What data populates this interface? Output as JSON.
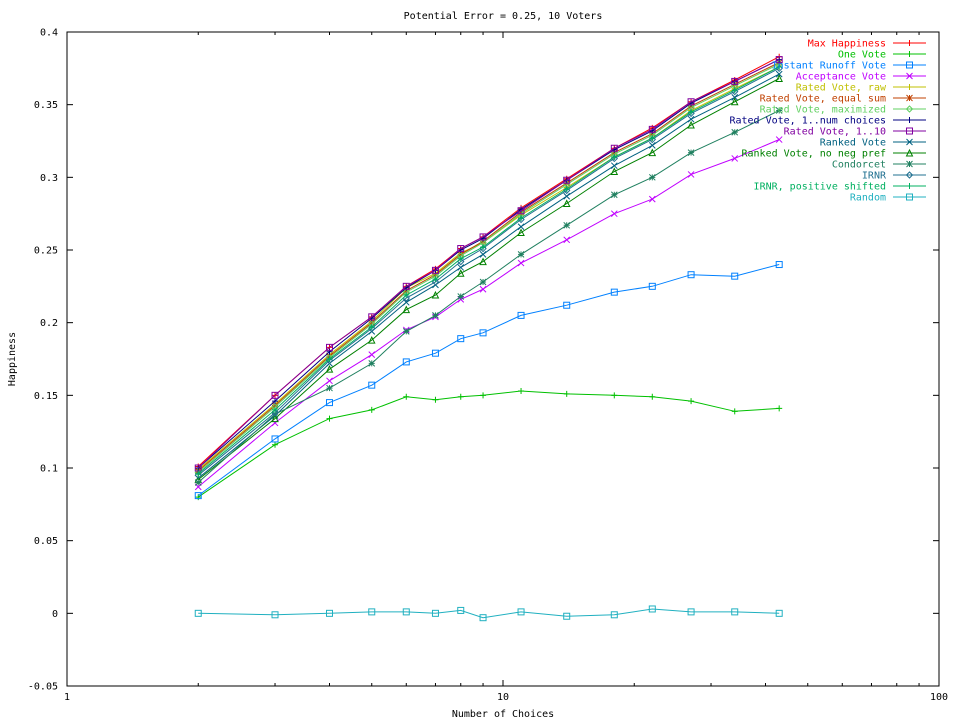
{
  "chart_data": {
    "type": "line",
    "title": "Potential Error = 0.25, 10 Voters",
    "xlabel": "Number of Choices",
    "ylabel": "Happiness",
    "xscale": "log",
    "xlim": [
      1,
      100
    ],
    "ylim": [
      -0.05,
      0.4
    ],
    "xticks": [
      1,
      10,
      100
    ],
    "xtick_labels": [
      "1",
      "10",
      "100"
    ],
    "yticks": [
      -0.05,
      0,
      0.05,
      0.1,
      0.15,
      0.2,
      0.25,
      0.3,
      0.35,
      0.4
    ],
    "ytick_labels": [
      "-0.05",
      "0",
      "0.05",
      "0.1",
      "0.15",
      "0.2",
      "0.25",
      "0.3",
      "0.35",
      "0.4"
    ],
    "grid": false,
    "legend_position": "top-right",
    "x": [
      2,
      3,
      4,
      5,
      6,
      7,
      8,
      9,
      11,
      14,
      18,
      22,
      27,
      34,
      43
    ],
    "series": [
      {
        "name": "Max Happiness",
        "color": "#ff0000",
        "marker": "plus",
        "values": [
          0.101,
          0.15,
          0.183,
          0.204,
          0.225,
          0.237,
          0.251,
          0.259,
          0.279,
          0.299,
          0.32,
          0.334,
          0.352,
          0.367,
          0.383
        ]
      },
      {
        "name": "One Vote",
        "color": "#00c000",
        "marker": "plus",
        "values": [
          0.08,
          0.116,
          0.134,
          0.14,
          0.149,
          0.147,
          0.149,
          0.15,
          0.153,
          0.151,
          0.15,
          0.149,
          0.146,
          0.139,
          0.141
        ]
      },
      {
        "name": "Instant Runoff Vote",
        "color": "#0080ff",
        "marker": "square",
        "values": [
          0.081,
          0.12,
          0.145,
          0.157,
          0.173,
          0.179,
          0.189,
          0.193,
          0.205,
          0.212,
          0.221,
          0.225,
          0.233,
          0.232,
          0.24
        ]
      },
      {
        "name": "Acceptance Vote",
        "color": "#c000ff",
        "marker": "x",
        "values": [
          0.087,
          0.131,
          0.16,
          0.178,
          0.195,
          0.204,
          0.216,
          0.223,
          0.241,
          0.257,
          0.275,
          0.285,
          0.302,
          0.313,
          0.326
        ]
      },
      {
        "name": "Rated Vote, raw",
        "color": "#c0c000",
        "marker": "plus",
        "values": [
          0.099,
          0.144,
          0.178,
          0.201,
          0.224,
          0.234,
          0.248,
          0.255,
          0.274,
          0.293,
          0.314,
          0.327,
          0.346,
          0.361,
          0.376
        ]
      },
      {
        "name": "Rated Vote, equal sum",
        "color": "#c04000",
        "marker": "star",
        "values": [
          0.098,
          0.143,
          0.177,
          0.2,
          0.222,
          0.233,
          0.247,
          0.256,
          0.276,
          0.296,
          0.317,
          0.33,
          0.349,
          0.364,
          0.379
        ]
      },
      {
        "name": "Rated Vote, maximized",
        "color": "#60d060",
        "marker": "diamond",
        "values": [
          0.097,
          0.142,
          0.176,
          0.199,
          0.221,
          0.232,
          0.246,
          0.255,
          0.275,
          0.295,
          0.316,
          0.329,
          0.348,
          0.363,
          0.378
        ]
      },
      {
        "name": "Rated Vote, 1..num choices",
        "color": "#000080",
        "marker": "plus",
        "values": [
          0.1,
          0.146,
          0.18,
          0.203,
          0.224,
          0.236,
          0.25,
          0.258,
          0.278,
          0.298,
          0.319,
          0.332,
          0.351,
          0.366,
          0.381
        ]
      },
      {
        "name": "Rated Vote, 1..10",
        "color": "#8000a0",
        "marker": "square",
        "values": [
          0.1,
          0.15,
          0.183,
          0.204,
          0.225,
          0.236,
          0.251,
          0.259,
          0.277,
          0.298,
          0.32,
          0.333,
          0.352,
          0.366,
          0.381
        ]
      },
      {
        "name": "Ranked Vote",
        "color": "#006080",
        "marker": "x",
        "values": [
          0.093,
          0.136,
          0.172,
          0.194,
          0.214,
          0.226,
          0.238,
          0.247,
          0.266,
          0.287,
          0.308,
          0.322,
          0.34,
          0.355,
          0.371
        ]
      },
      {
        "name": "Ranked Vote, no neg pref",
        "color": "#008000",
        "marker": "triangle",
        "values": [
          0.092,
          0.134,
          0.168,
          0.188,
          0.209,
          0.219,
          0.234,
          0.242,
          0.262,
          0.282,
          0.304,
          0.317,
          0.336,
          0.352,
          0.368
        ]
      },
      {
        "name": "Condorcet",
        "color": "#208060",
        "marker": "star",
        "values": [
          0.09,
          0.137,
          0.155,
          0.172,
          0.194,
          0.205,
          0.218,
          0.228,
          0.247,
          0.267,
          0.288,
          0.3,
          0.317,
          0.331,
          0.346
        ]
      },
      {
        "name": "IRNR",
        "color": "#207090",
        "marker": "diamond",
        "values": [
          0.095,
          0.138,
          0.174,
          0.196,
          0.217,
          0.228,
          0.242,
          0.251,
          0.271,
          0.291,
          0.313,
          0.326,
          0.344,
          0.359,
          0.375
        ]
      },
      {
        "name": "IRNR, positive shifted",
        "color": "#00b060",
        "marker": "plus",
        "values": [
          0.096,
          0.14,
          0.175,
          0.197,
          0.219,
          0.23,
          0.244,
          0.252,
          0.272,
          0.292,
          0.314,
          0.327,
          0.345,
          0.36,
          0.376
        ]
      },
      {
        "name": "Random",
        "color": "#20b0c0",
        "marker": "square",
        "values": [
          0.0,
          -0.001,
          0.0,
          0.001,
          0.001,
          0.0,
          0.002,
          -0.003,
          0.001,
          -0.002,
          -0.001,
          0.003,
          0.001,
          0.001,
          0.0
        ]
      }
    ]
  }
}
